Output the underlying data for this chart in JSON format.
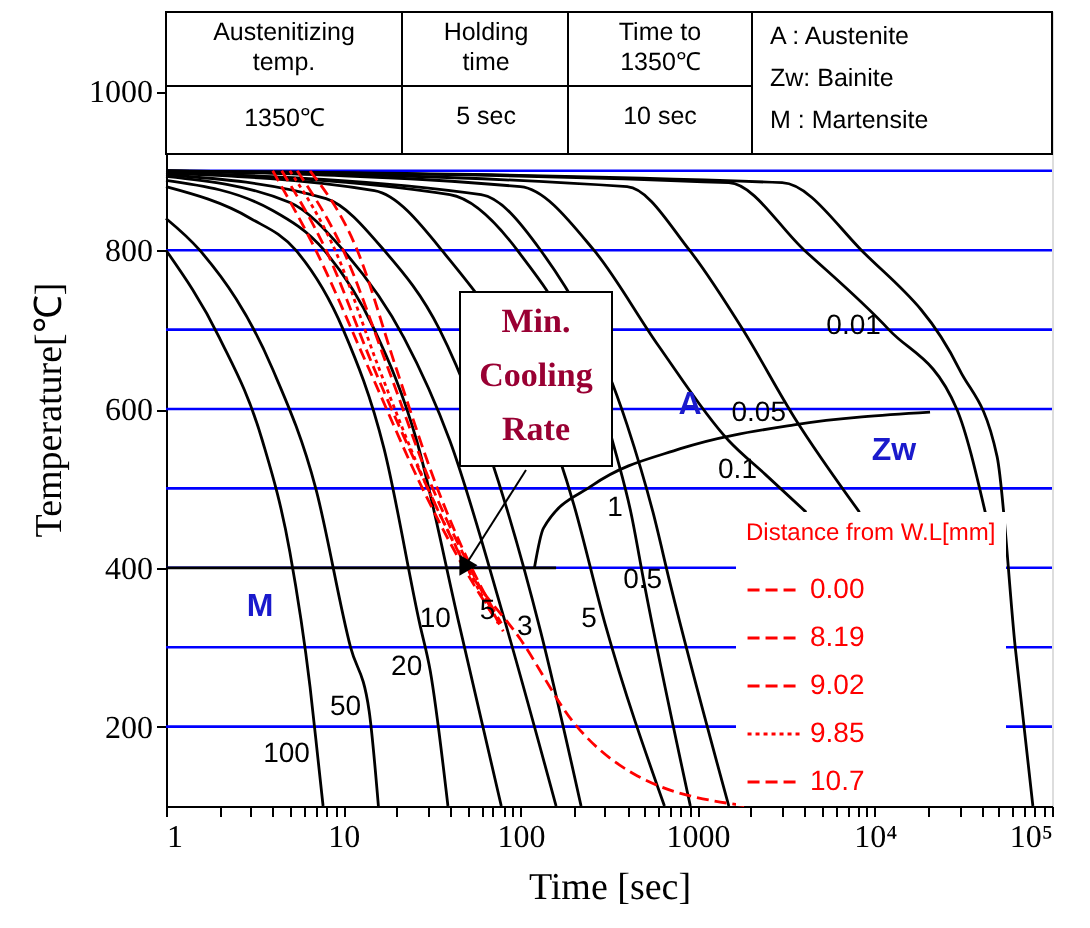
{
  "chart_data": {
    "type": "line",
    "xlabel": "Time [sec]",
    "ylabel": "Temperature[℃]",
    "legend_title": "Distance from W.L[mm]",
    "log": "x",
    "grid": false,
    "legend": "bottom right",
    "marker": "none",
    "xlim": [
      1,
      100000
    ],
    "ylim": [
      100,
      1100
    ],
    "xticks": [
      1,
      {
        "value": 2,
        "label": null
      },
      {
        "value": 3,
        "label": null
      },
      {
        "value": 4,
        "label": null
      },
      {
        "value": 5,
        "label": null
      },
      {
        "value": 6,
        "label": null
      },
      {
        "value": 7,
        "label": null
      },
      {
        "value": 8,
        "label": null
      },
      {
        "value": 9,
        "label": null
      },
      10,
      {
        "value": 20,
        "label": null
      },
      {
        "value": 30,
        "label": null
      },
      {
        "value": 40,
        "label": null
      },
      {
        "value": 50,
        "label": null
      },
      {
        "value": 60,
        "label": null
      },
      {
        "value": 70,
        "label": null
      },
      {
        "value": 80,
        "label": null
      },
      {
        "value": 90,
        "label": null
      },
      100,
      {
        "value": 200,
        "label": null
      },
      {
        "value": 300,
        "label": null
      },
      {
        "value": 400,
        "label": null
      },
      {
        "value": 500,
        "label": null
      },
      {
        "value": 600,
        "label": null
      },
      {
        "value": 700,
        "label": null
      },
      {
        "value": 800,
        "label": null
      },
      {
        "value": 900,
        "label": null
      },
      1000,
      {
        "value": 2000,
        "label": null
      },
      {
        "value": 3000,
        "label": null
      },
      {
        "value": 4000,
        "label": null
      },
      {
        "value": 5000,
        "label": null
      },
      {
        "value": 6000,
        "label": null
      },
      {
        "value": 7000,
        "label": null
      },
      {
        "value": 8000,
        "label": null
      },
      {
        "value": 9000,
        "label": null
      },
      {
        "value": 10000,
        "label": "10⁴"
      },
      {
        "value": 20000,
        "label": null
      },
      {
        "value": 30000,
        "label": null
      },
      {
        "value": 40000,
        "label": null
      },
      {
        "value": 50000,
        "label": null
      },
      {
        "value": 60000,
        "label": null
      },
      {
        "value": 70000,
        "label": null
      },
      {
        "value": 80000,
        "label": null
      },
      {
        "value": 90000,
        "label": null
      },
      {
        "value": 100000,
        "label": "10⁵"
      }
    ],
    "yticks": [
      200,
      400,
      600,
      800,
      1000
    ],
    "ref_lines": [
      {
        "axis": "y",
        "value": 200,
        "color": "#0000ff"
      },
      {
        "axis": "y",
        "value": 300,
        "color": "#0000ff"
      },
      {
        "axis": "y",
        "value": 400,
        "color": "#0000ff"
      },
      {
        "axis": "y",
        "value": 500,
        "color": "#0000ff"
      },
      {
        "axis": "y",
        "value": 600,
        "color": "#0000ff"
      },
      {
        "axis": "y",
        "value": 700,
        "color": "#0000ff"
      },
      {
        "axis": "y",
        "value": 800,
        "color": "#0000ff"
      },
      {
        "axis": "y",
        "value": 900,
        "color": "#0000ff"
      }
    ],
    "series": [
      {
        "color": "#000000",
        "line_style": "solid",
        "x": [
          1,
          2,
          3.5,
          5,
          6.5,
          7.2,
          7.7
        ],
        "values": [
          800,
          690,
          560,
          420,
          250,
          160,
          100
        ]
      },
      {
        "color": "#000000",
        "line_style": "solid",
        "x": [
          1,
          1.55,
          4,
          7,
          11,
          14,
          15.8
        ],
        "values": [
          840,
          800,
          650,
          500,
          300,
          220,
          100
        ]
      },
      {
        "color": "#000000",
        "line_style": "solid",
        "x": [
          1,
          3,
          5.4,
          10,
          17,
          27,
          31,
          39
        ],
        "values": [
          880,
          840,
          800,
          700,
          550,
          330,
          270,
          100
        ]
      },
      {
        "color": "#000000",
        "line_style": "solid",
        "x": [
          1,
          4,
          7.8,
          15,
          26,
          45,
          78
        ],
        "values": [
          888,
          850,
          800,
          700,
          560,
          330,
          100
        ]
      },
      {
        "color": "#000000",
        "line_style": "solid",
        "x": [
          1,
          5,
          10,
          22,
          40,
          80,
          159
        ],
        "values": [
          893,
          860,
          800,
          690,
          560,
          340,
          100
        ]
      },
      {
        "color": "#000000",
        "line_style": "solid",
        "x": [
          1,
          8,
          17,
          35,
          130,
          220
        ],
        "values": [
          895,
          865,
          800,
          700,
          320,
          100
        ]
      },
      {
        "color": "#000000",
        "line_style": "solid",
        "x": [
          1,
          15,
          36,
          200,
          300,
          650
        ],
        "values": [
          897,
          875,
          800,
          480,
          330,
          100
        ]
      },
      {
        "color": "#000000",
        "line_style": "solid",
        "x": [
          1,
          40,
          96,
          350,
          420,
          500,
          910
        ],
        "values": [
          898,
          870,
          800,
          540,
          470,
          380,
          100
        ]
      },
      {
        "color": "#000000",
        "line_style": "solid",
        "x": [
          1,
          60,
          130,
          400,
          560,
          700,
          1500
        ],
        "values": [
          898,
          870,
          800,
          580,
          470,
          380,
          100
        ]
      },
      {
        "color": "#000000",
        "line_style": "solid",
        "x": [
          1,
          100,
          260,
          600,
          1500,
          2400,
          4100
        ],
        "values": [
          900,
          880,
          800,
          680,
          560,
          518,
          470
        ]
      },
      {
        "color": "#000000",
        "line_style": "solid",
        "x": [
          1,
          400,
          900,
          1800,
          3500,
          8200
        ],
        "values": [
          900,
          880,
          800,
          700,
          590,
          470
        ]
      },
      {
        "color": "#000000",
        "line_style": "solid",
        "x": [
          1,
          1500,
          4000,
          12000,
          29000,
          42000
        ],
        "values": [
          900,
          885,
          800,
          700,
          600,
          470
        ]
      },
      {
        "color": "#000000",
        "line_style": "solid",
        "x": [
          1,
          3000,
          8400,
          30000,
          49000,
          62000,
          78000
        ],
        "values": [
          900,
          885,
          800,
          650,
          540,
          300,
          100
        ]
      },
      {
        "color": "#000000",
        "line_style": "solid",
        "x": [
          1,
          159
        ],
        "values": [
          400,
          400
        ]
      },
      {
        "color": "#000000",
        "line_style": "solid",
        "x": [
          120,
          135,
          256,
          800,
          3500,
          20500
        ],
        "values": [
          400,
          450,
          504,
          550,
          580,
          596
        ]
      },
      {
        "name": "0.00",
        "color": "#ff0000",
        "line_style": "dashed",
        "x": [
          4.5,
          8,
          15,
          30,
          50,
          100,
          200,
          440,
          1900
        ],
        "values": [
          900,
          800,
          650,
          500,
          400,
          310,
          205,
          140,
          100
        ]
      },
      {
        "name": "8.19",
        "color": "#ff0000",
        "line_style": "dashed",
        "x": [
          4,
          7,
          14,
          28,
          48,
          75
        ],
        "values": [
          900,
          800,
          650,
          500,
          400,
          330
        ]
      },
      {
        "name": "9.02",
        "color": "#ff0000",
        "line_style": "dashed",
        "x": [
          5.5,
          10,
          18,
          32,
          52,
          80
        ],
        "values": [
          900,
          800,
          650,
          500,
          400,
          320
        ]
      },
      {
        "name": "9.85",
        "color": "#ff0000",
        "line_style": "dotted",
        "x": [
          5,
          9,
          16,
          30,
          50,
          70
        ],
        "values": [
          900,
          800,
          650,
          500,
          400,
          340
        ]
      },
      {
        "name": "10.7",
        "color": "#ff0000",
        "line_style": "dashed",
        "x": [
          6.5,
          12,
          20,
          34,
          53,
          78
        ],
        "values": [
          900,
          800,
          650,
          500,
          400,
          330
        ]
      }
    ],
    "annotations": [
      {
        "text": "100",
        "x": 7.2,
        "y": 160
      },
      {
        "text": "50",
        "x": 14,
        "y": 220
      },
      {
        "text": "20",
        "x": 31,
        "y": 270
      },
      {
        "text": "10",
        "x": 45,
        "y": 330
      },
      {
        "text": "5",
        "x": 80,
        "y": 340
      },
      {
        "text": "3",
        "x": 130,
        "y": 320
      },
      {
        "text": "5",
        "x": 300,
        "y": 330
      },
      {
        "text": "1",
        "x": 420,
        "y": 470
      },
      {
        "text": "0.5",
        "x": 700,
        "y": 380
      },
      {
        "text": "0.1",
        "x": 2400,
        "y": 518
      },
      {
        "text": "0.05",
        "x": 3500,
        "y": 590
      },
      {
        "text": "0.01",
        "x": 12000,
        "y": 700
      },
      {
        "text": "Min.\nCooling\nRate",
        "x": 48,
        "y": 400
      },
      "A",
      "Zw",
      "M",
      "Austenitizing\ntemp.",
      "Holding\ntime",
      "Time to\n1350℃",
      "1350℃",
      "5 sec",
      "10 sec",
      "A : Austenite\nZw: Bainite\nM : Martensite"
    ]
  }
}
